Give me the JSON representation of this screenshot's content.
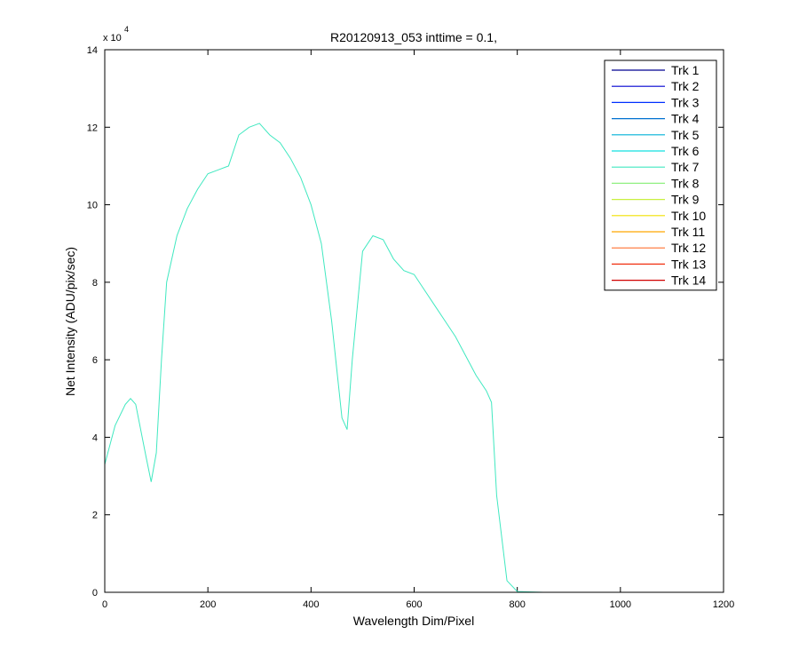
{
  "chart_data": {
    "type": "line",
    "title": "R20120913_053 inttime = 0.1,",
    "xlabel": "Wavelength Dim/Pixel",
    "ylabel": "Net Intensity (ADU/pix/sec)",
    "y_scale_label": "x 10",
    "y_scale_exponent": "4",
    "xlim": [
      0,
      1200
    ],
    "xticks": [
      0,
      200,
      400,
      600,
      800,
      1000,
      1200
    ],
    "ylim": [
      0,
      14
    ],
    "yticks": [
      0,
      2,
      4,
      6,
      8,
      10,
      12,
      14
    ],
    "legend": "upper right",
    "x": [
      0,
      20,
      40,
      50,
      60,
      80,
      90,
      100,
      110,
      120,
      140,
      160,
      180,
      200,
      220,
      240,
      260,
      280,
      300,
      320,
      340,
      360,
      380,
      400,
      420,
      440,
      460,
      470,
      480,
      500,
      520,
      540,
      560,
      580,
      600,
      620,
      640,
      660,
      680,
      700,
      720,
      740,
      750,
      760,
      780,
      800,
      850,
      900,
      950,
      1000,
      1023
    ],
    "series": [
      {
        "name": "Trk 1",
        "color": "#000090",
        "values": [
          0,
          0,
          0,
          0,
          0,
          0,
          0,
          0,
          0,
          0,
          0,
          0,
          0,
          0,
          0,
          0,
          0,
          0,
          0,
          0,
          0,
          0,
          0,
          0,
          0,
          0,
          0,
          0,
          0,
          0,
          0,
          0,
          0,
          0,
          0,
          0,
          0,
          0,
          0,
          0,
          0,
          0,
          0,
          0,
          0,
          0,
          0,
          0,
          0,
          0,
          0
        ]
      },
      {
        "name": "Trk 2",
        "color": "#0000d0",
        "values": [
          0,
          0,
          0,
          0,
          0,
          0,
          0,
          0,
          0,
          0,
          0,
          0,
          0,
          0,
          0,
          0,
          0,
          0,
          0,
          0,
          0,
          0,
          0,
          0,
          0,
          0,
          0,
          0,
          0,
          0,
          0,
          0,
          0,
          0,
          0,
          0,
          0,
          0,
          0,
          0,
          0,
          0,
          0,
          0,
          0,
          0,
          0,
          0,
          0,
          0,
          0
        ]
      },
      {
        "name": "Trk 3",
        "color": "#0030ff",
        "values": [
          0,
          0,
          0,
          0,
          0,
          0,
          0,
          0,
          0,
          0,
          0,
          0,
          0,
          0,
          0,
          0,
          0,
          0,
          0,
          0,
          0,
          0,
          0,
          0,
          0,
          0,
          0,
          0,
          0,
          0,
          0,
          0,
          0,
          0,
          0,
          0,
          0,
          0,
          0,
          0,
          0,
          0,
          0,
          0,
          0,
          0,
          0,
          0,
          0,
          0,
          0
        ]
      },
      {
        "name": "Trk 4",
        "color": "#0070d0",
        "values": [
          0,
          0,
          0,
          0,
          0,
          0,
          0,
          0,
          0,
          0,
          0,
          0,
          0,
          0,
          0,
          0,
          0,
          0,
          0,
          0,
          0,
          0,
          0,
          0,
          0,
          0,
          0,
          0,
          0,
          0,
          0,
          0,
          0,
          0,
          0,
          0,
          0,
          0,
          0,
          0,
          0,
          0,
          0,
          0,
          0,
          0,
          0,
          0,
          0,
          0,
          0
        ]
      },
      {
        "name": "Trk 5",
        "color": "#00b0d8",
        "values": [
          0,
          0,
          0,
          0,
          0,
          0,
          0,
          0,
          0,
          0,
          0,
          0,
          0,
          0,
          0,
          0,
          0,
          0,
          0,
          0,
          0,
          0,
          0,
          0,
          0,
          0,
          0,
          0,
          0,
          0,
          0,
          0,
          0,
          0,
          0,
          0,
          0,
          0,
          0,
          0,
          0,
          0,
          0,
          0,
          0,
          0,
          0,
          0,
          0,
          0,
          0
        ]
      },
      {
        "name": "Trk 6",
        "color": "#10e0e0",
        "values": [
          0,
          0,
          0,
          0,
          0,
          0,
          0,
          0,
          0,
          0,
          0,
          0,
          0,
          0,
          0,
          0,
          0,
          0,
          0,
          0,
          0,
          0,
          0,
          0,
          0,
          0,
          0,
          0,
          0,
          0,
          0,
          0,
          0,
          0,
          0,
          0,
          0,
          0,
          0,
          0,
          0,
          0,
          0,
          0,
          0,
          0,
          0,
          0,
          0,
          0,
          0
        ]
      },
      {
        "name": "Trk 7",
        "color": "#40e8c0",
        "values": [
          3.3,
          4.3,
          4.85,
          5.0,
          4.85,
          3.5,
          2.85,
          3.6,
          6.0,
          8.0,
          9.2,
          9.9,
          10.4,
          10.8,
          10.9,
          11.0,
          11.8,
          12.0,
          12.1,
          11.8,
          11.6,
          11.2,
          10.7,
          10.0,
          9.0,
          7.0,
          4.5,
          4.2,
          6.0,
          8.8,
          9.2,
          9.1,
          8.6,
          8.3,
          8.2,
          7.8,
          7.4,
          7.0,
          6.6,
          6.1,
          5.6,
          5.2,
          4.9,
          2.5,
          0.3,
          0.02,
          0,
          0,
          0,
          0,
          0
        ]
      },
      {
        "name": "Trk 8",
        "color": "#90f080",
        "values": [
          0,
          0,
          0,
          0,
          0,
          0,
          0,
          0,
          0,
          0,
          0,
          0,
          0,
          0,
          0,
          0,
          0,
          0,
          0,
          0,
          0,
          0,
          0,
          0,
          0,
          0,
          0,
          0,
          0,
          0,
          0,
          0,
          0,
          0,
          0,
          0,
          0,
          0,
          0,
          0,
          0,
          0,
          0,
          0,
          0,
          0,
          0,
          0,
          0,
          0,
          0
        ]
      },
      {
        "name": "Trk 9",
        "color": "#c8f040",
        "values": [
          0,
          0,
          0,
          0,
          0,
          0,
          0,
          0,
          0,
          0,
          0,
          0,
          0,
          0,
          0,
          0,
          0,
          0,
          0,
          0,
          0,
          0,
          0,
          0,
          0,
          0,
          0,
          0,
          0,
          0,
          0,
          0,
          0,
          0,
          0,
          0,
          0,
          0,
          0,
          0,
          0,
          0,
          0,
          0,
          0,
          0,
          0,
          0,
          0,
          0,
          0
        ]
      },
      {
        "name": "Trk 10",
        "color": "#f0e000",
        "values": [
          0,
          0,
          0,
          0,
          0,
          0,
          0,
          0,
          0,
          0,
          0,
          0,
          0,
          0,
          0,
          0,
          0,
          0,
          0,
          0,
          0,
          0,
          0,
          0,
          0,
          0,
          0,
          0,
          0,
          0,
          0,
          0,
          0,
          0,
          0,
          0,
          0,
          0,
          0,
          0,
          0,
          0,
          0,
          0,
          0,
          0,
          0,
          0,
          0,
          0,
          0
        ]
      },
      {
        "name": "Trk 11",
        "color": "#ffa800",
        "values": [
          0,
          0,
          0,
          0,
          0,
          0,
          0,
          0,
          0,
          0,
          0,
          0,
          0,
          0,
          0,
          0,
          0,
          0,
          0,
          0,
          0,
          0,
          0,
          0,
          0,
          0,
          0,
          0,
          0,
          0,
          0,
          0,
          0,
          0,
          0,
          0,
          0,
          0,
          0,
          0,
          0,
          0,
          0,
          0,
          0,
          0,
          0,
          0,
          0,
          0,
          0
        ]
      },
      {
        "name": "Trk 12",
        "color": "#ff7030",
        "values": [
          0,
          0,
          0,
          0,
          0,
          0,
          0,
          0,
          0,
          0,
          0,
          0,
          0,
          0,
          0,
          0,
          0,
          0,
          0,
          0,
          0,
          0,
          0,
          0,
          0,
          0,
          0,
          0,
          0,
          0,
          0,
          0,
          0,
          0,
          0,
          0,
          0,
          0,
          0,
          0,
          0,
          0,
          0,
          0,
          0,
          0,
          0,
          0,
          0,
          0,
          0
        ]
      },
      {
        "name": "Trk 13",
        "color": "#f03010",
        "values": [
          0,
          0,
          0,
          0,
          0,
          0,
          0,
          0,
          0,
          0,
          0,
          0,
          0,
          0,
          0,
          0,
          0,
          0,
          0,
          0,
          0,
          0,
          0,
          0,
          0,
          0,
          0,
          0,
          0,
          0,
          0,
          0,
          0,
          0,
          0,
          0,
          0,
          0,
          0,
          0,
          0,
          0,
          0,
          0,
          0,
          0,
          0,
          0,
          0,
          0,
          0
        ]
      },
      {
        "name": "Trk 14",
        "color": "#d00000",
        "values": [
          0,
          0,
          0,
          0,
          0,
          0,
          0,
          0,
          0,
          0,
          0,
          0,
          0,
          0,
          0,
          0,
          0,
          0,
          0,
          0,
          0,
          0,
          0,
          0,
          0,
          0,
          0,
          0,
          0,
          0,
          0,
          0,
          0,
          0,
          0,
          0,
          0,
          0,
          0,
          0,
          0,
          0,
          0,
          0,
          0,
          0,
          0,
          0,
          0,
          0,
          0
        ]
      }
    ]
  }
}
